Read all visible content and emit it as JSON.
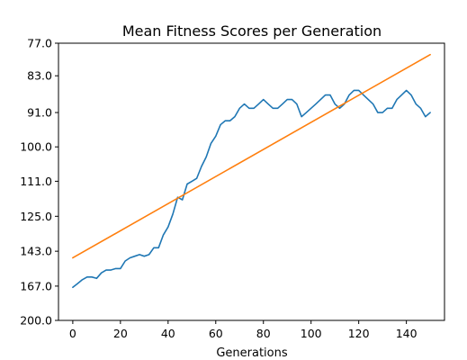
{
  "chart_data": {
    "type": "line",
    "title": "Mean Fitness Scores per Generation",
    "xlabel": "Generations",
    "ylabel": "",
    "xlim": [
      -6,
      156
    ],
    "x_ticks": [
      0,
      20,
      40,
      60,
      80,
      100,
      120,
      140
    ],
    "y_scale": "reciprocal",
    "ylim": [
      200,
      77
    ],
    "y_ticks": [
      77,
      83,
      91,
      100,
      111,
      125,
      143,
      167,
      200
    ],
    "y_tick_labels": [
      "77.0",
      "83.0",
      "91.0",
      "100.0",
      "111.0",
      "125.0",
      "143.0",
      "167.0",
      "200.0"
    ],
    "grid": false,
    "legend": "none",
    "series": [
      {
        "color": "#1f77b4",
        "x": [
          0,
          2,
          4,
          6,
          8,
          10,
          12,
          14,
          16,
          18,
          20,
          22,
          24,
          26,
          28,
          30,
          32,
          34,
          36,
          38,
          40,
          42,
          44,
          46,
          48,
          50,
          52,
          54,
          56,
          58,
          60,
          62,
          64,
          66,
          68,
          70,
          72,
          74,
          76,
          78,
          80,
          82,
          84,
          86,
          88,
          90,
          92,
          94,
          96,
          98,
          100,
          102,
          104,
          106,
          108,
          110,
          112,
          114,
          116,
          118,
          120,
          122,
          124,
          126,
          128,
          130,
          132,
          134,
          136,
          138,
          140,
          142,
          144,
          146,
          148,
          150
        ],
        "y": [
          168,
          165,
          162,
          160,
          160,
          161,
          157,
          155,
          155,
          154,
          154,
          149,
          147,
          146,
          145,
          146,
          145,
          141,
          141,
          134,
          130,
          124,
          117,
          118,
          112,
          111,
          110,
          106,
          103,
          99,
          97,
          94,
          93,
          93,
          92,
          90,
          89,
          90,
          90,
          89,
          88,
          89,
          90,
          90,
          89,
          88,
          88,
          89,
          92,
          91,
          90,
          89,
          88,
          87,
          87,
          89,
          90,
          89,
          87,
          86,
          86,
          87,
          88,
          89,
          91,
          91,
          90,
          90,
          88,
          87,
          86,
          87,
          89,
          90,
          92,
          91
        ]
      },
      {
        "color": "#ff7f0e",
        "x": [
          0,
          150
        ],
        "y": [
          147,
          79
        ]
      }
    ]
  }
}
